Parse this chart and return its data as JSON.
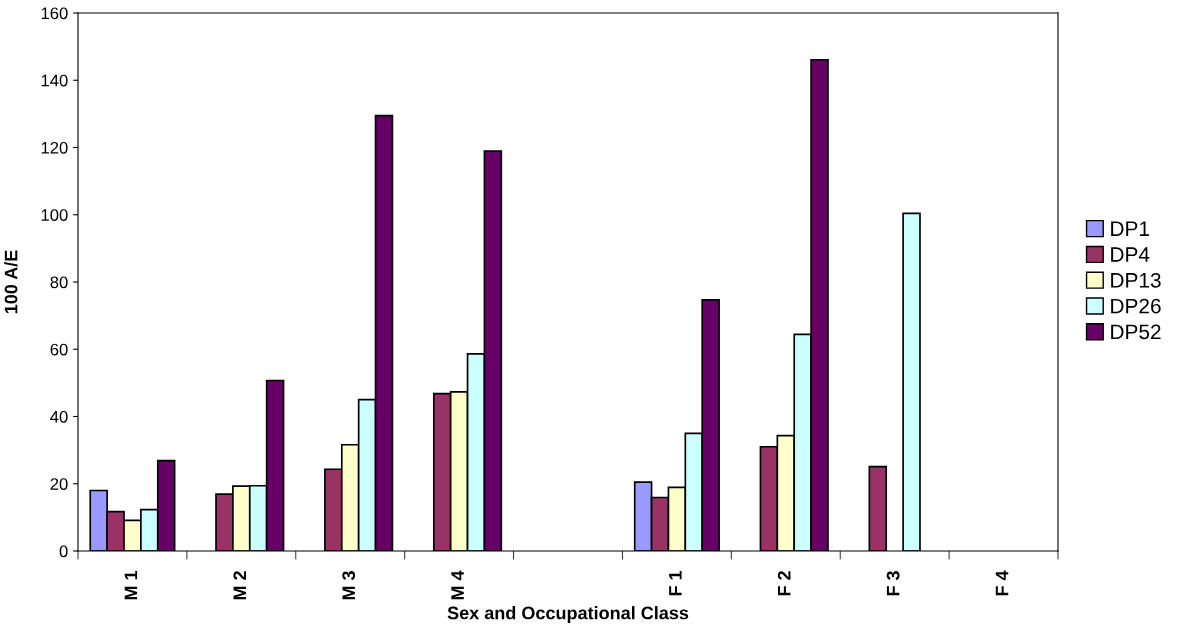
{
  "chart_data": {
    "type": "bar",
    "xlabel": "Sex and Occupational Class",
    "ylabel": "100 A/E",
    "categories": [
      "M 1",
      "M 2",
      "M 3",
      "M 4",
      null,
      "F 1",
      "F 2",
      "F 3",
      "F 4"
    ],
    "series": [
      {
        "name": "DP1",
        "color": "#9999ff",
        "values": [
          18,
          null,
          null,
          null,
          null,
          20.5,
          null,
          null,
          null
        ]
      },
      {
        "name": "DP4",
        "color": "#993366",
        "values": [
          11.7,
          16.9,
          24.3,
          46.8,
          null,
          15.9,
          31,
          25.1,
          null
        ]
      },
      {
        "name": "DP13",
        "color": "#ffffcc",
        "values": [
          9.1,
          19.3,
          31.6,
          47.3,
          null,
          18.9,
          34.3,
          null,
          null
        ]
      },
      {
        "name": "DP26",
        "color": "#ccffff",
        "values": [
          12.3,
          19.4,
          45,
          58.6,
          null,
          35,
          64.4,
          100.4,
          null
        ]
      },
      {
        "name": "DP52",
        "color": "#660066",
        "values": [
          26.9,
          50.7,
          129.5,
          118.9,
          null,
          74.7,
          146.1,
          null,
          null
        ]
      }
    ],
    "ylim": [
      0,
      160
    ],
    "yticks": [
      0,
      20,
      40,
      60,
      80,
      100,
      120,
      140,
      160
    ],
    "grid": false,
    "legend": "right"
  }
}
